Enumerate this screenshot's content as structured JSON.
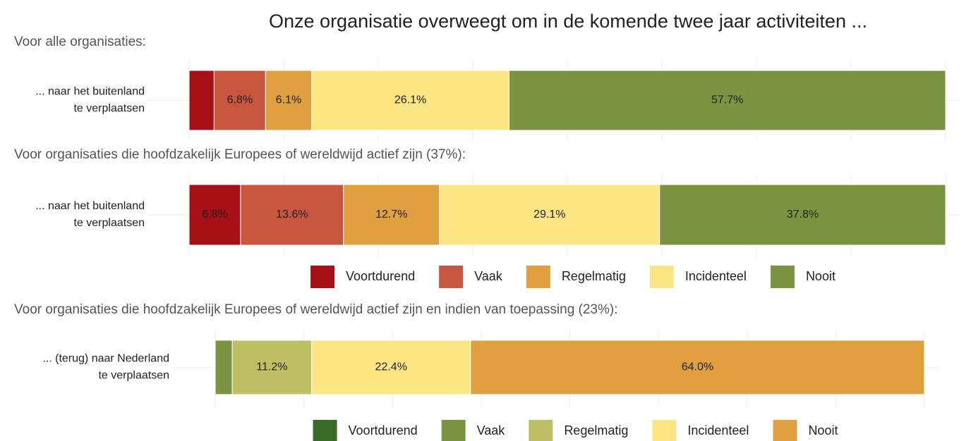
{
  "title": "Onze organisatie overweegt om in de komende twee jaar activiteiten ...",
  "chart_data": [
    {
      "type": "stacked-bar",
      "subtitle": "Voor alle organisaties:",
      "categories": [
        "... naar het buitenland\nte verplaatsen"
      ],
      "xlim": [
        0,
        100
      ],
      "xticks": [
        0,
        12.5,
        25,
        37.5,
        50,
        62.5,
        75,
        87.5,
        100
      ],
      "grid": true,
      "legend": false,
      "series": [
        {
          "name": "Voortdurend",
          "color": "#a50f15",
          "values": [
            3.3
          ]
        },
        {
          "name": "Vaak",
          "color": "#c8553d",
          "values": [
            6.8
          ],
          "value_labels": [
            "6.8%"
          ]
        },
        {
          "name": "Regelmatig",
          "color": "#e0a040",
          "values": [
            6.1
          ],
          "value_labels": [
            "6.1%"
          ]
        },
        {
          "name": "Incidenteel",
          "color": "#fbe683",
          "values": [
            26.1
          ],
          "value_labels": [
            "26.1%"
          ]
        },
        {
          "name": "Nooit",
          "color": "#7a9442",
          "values": [
            57.7
          ],
          "value_labels": [
            "57.7%"
          ]
        }
      ]
    },
    {
      "type": "stacked-bar",
      "subtitle": "Voor organisaties die hoofdzakelijk Europees of wereldwijd actief zijn (37%):",
      "categories": [
        "... naar het buitenland\nte verplaatsen"
      ],
      "xlim": [
        0,
        100
      ],
      "xticks": [
        0,
        12.5,
        25,
        37.5,
        50,
        62.5,
        75,
        87.5,
        100
      ],
      "grid": true,
      "legend": true,
      "series": [
        {
          "name": "Voortdurend",
          "color": "#a50f15",
          "values": [
            6.8
          ],
          "value_labels": [
            "6.8%"
          ]
        },
        {
          "name": "Vaak",
          "color": "#c8553d",
          "values": [
            13.6
          ],
          "value_labels": [
            "13.6%"
          ]
        },
        {
          "name": "Regelmatig",
          "color": "#e0a040",
          "values": [
            12.7
          ],
          "value_labels": [
            "12.7%"
          ]
        },
        {
          "name": "Incidenteel",
          "color": "#fbe683",
          "values": [
            29.1
          ],
          "value_labels": [
            "29.1%"
          ]
        },
        {
          "name": "Nooit",
          "color": "#7a9442",
          "values": [
            37.8
          ],
          "value_labels": [
            "37.8%"
          ]
        }
      ]
    },
    {
      "type": "stacked-bar",
      "subtitle": "Voor organisaties die hoofdzakelijk Europees of wereldwijd actief zijn en indien van toepassing (23%):",
      "categories": [
        "... (terug) naar Nederland\nte verplaatsen"
      ],
      "xlim": [
        0,
        100
      ],
      "xticks": [
        0,
        12.5,
        25,
        37.5,
        50,
        62.5,
        75,
        87.5,
        100
      ],
      "grid": true,
      "legend": true,
      "series": [
        {
          "name": "Voortdurend",
          "color": "#386b25",
          "values": [
            0
          ]
        },
        {
          "name": "Vaak",
          "color": "#7a9442",
          "values": [
            2.4
          ]
        },
        {
          "name": "Regelmatig",
          "color": "#bfbf66",
          "values": [
            11.2
          ],
          "value_labels": [
            "11.2%"
          ]
        },
        {
          "name": "Incidenteel",
          "color": "#fbe683",
          "values": [
            22.4
          ],
          "value_labels": [
            "22.4%"
          ]
        },
        {
          "name": "Nooit",
          "color": "#e0a040",
          "values": [
            64.0
          ],
          "value_labels": [
            "64.0%"
          ]
        }
      ]
    }
  ]
}
